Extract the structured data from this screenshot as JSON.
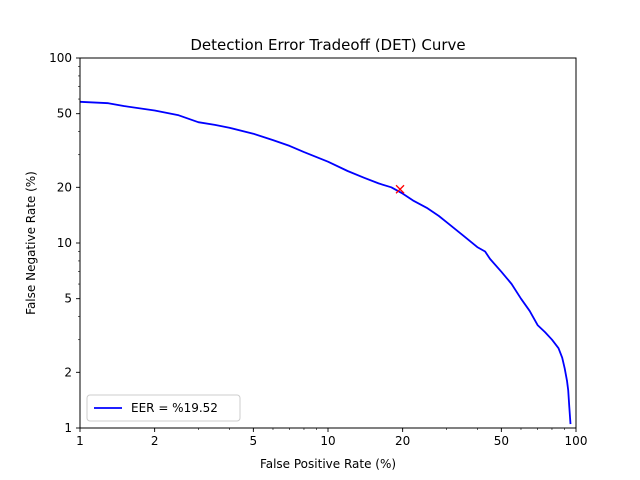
{
  "chart_data": {
    "type": "line",
    "title": "Detection Error Tradeoff (DET) Curve",
    "xlabel": "False Positive Rate (%)",
    "ylabel": "False Negative Rate (%)",
    "xscale": "log",
    "yscale": "log",
    "xlim": [
      1,
      100
    ],
    "ylim": [
      1,
      100
    ],
    "x_ticks": [
      1,
      2,
      5,
      10,
      20,
      50,
      100
    ],
    "x_tick_labels": [
      "1",
      "2",
      "5",
      "10",
      "20",
      "50",
      "100"
    ],
    "y_ticks": [
      1,
      2,
      5,
      10,
      20,
      50,
      100
    ],
    "y_tick_labels": [
      "1",
      "2",
      "5",
      "10",
      "20",
      "50",
      "100"
    ],
    "grid": false,
    "legend_position": "lower-left",
    "series": [
      {
        "name": "EER = %19.52",
        "color": "#0000ff",
        "x": [
          1,
          1.3,
          1.5,
          2,
          2.5,
          3,
          3.5,
          4,
          5,
          6,
          7,
          8,
          10,
          12,
          14,
          16,
          18,
          20,
          22,
          25,
          28,
          30,
          35,
          40,
          43,
          45,
          50,
          55,
          60,
          65,
          70,
          75,
          80,
          85,
          88,
          90,
          92,
          93,
          94,
          95
        ],
        "y": [
          58,
          57,
          55,
          52,
          49,
          45,
          43.5,
          42,
          39,
          36,
          33.5,
          31,
          27.5,
          24.5,
          22.5,
          21,
          20,
          18.5,
          17,
          15.5,
          14,
          13,
          11,
          9.5,
          9,
          8.2,
          7,
          6,
          5,
          4.3,
          3.6,
          3.3,
          3,
          2.7,
          2.4,
          2.1,
          1.8,
          1.6,
          1.3,
          1.05
        ]
      }
    ],
    "markers": [
      {
        "x": 19.52,
        "y": 19.52,
        "symbol": "x",
        "color": "#ff0000"
      }
    ]
  }
}
